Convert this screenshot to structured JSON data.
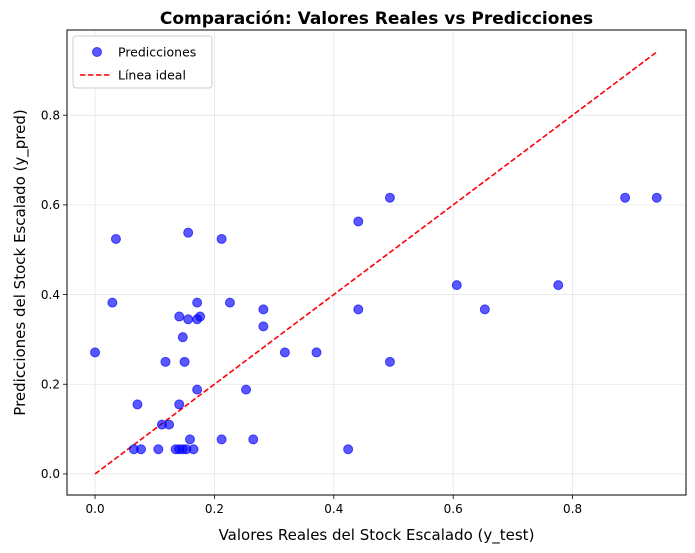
{
  "chart_data": {
    "type": "scatter",
    "title": "Comparación: Valores Reales vs Predicciones",
    "xlabel": "Valores Reales del Stock Escalado (y_test)",
    "ylabel": "Predicciones del Stock Escalado (y_pred)",
    "xlim": [
      -0.047,
      0.99
    ],
    "ylim": [
      -0.047,
      0.99
    ],
    "xticks": [
      0.0,
      0.2,
      0.4,
      0.6,
      0.8
    ],
    "yticks": [
      0.0,
      0.2,
      0.4,
      0.6,
      0.8
    ],
    "grid": true,
    "legend_position": "top-left",
    "series": [
      {
        "name": "Predicciones",
        "kind": "scatter",
        "color": "#0000ff",
        "x": [
          0.0,
          0.029,
          0.035,
          0.065,
          0.071,
          0.077,
          0.106,
          0.112,
          0.118,
          0.124,
          0.135,
          0.141,
          0.141,
          0.141,
          0.147,
          0.147,
          0.15,
          0.153,
          0.156,
          0.156,
          0.159,
          0.165,
          0.171,
          0.171,
          0.171,
          0.176,
          0.212,
          0.212,
          0.226,
          0.253,
          0.265,
          0.282,
          0.282,
          0.318,
          0.371,
          0.424,
          0.441,
          0.441,
          0.494,
          0.494,
          0.606,
          0.653,
          0.776,
          0.888,
          0.941
        ],
        "y": [
          0.271,
          0.382,
          0.524,
          0.055,
          0.155,
          0.055,
          0.055,
          0.11,
          0.25,
          0.11,
          0.055,
          0.155,
          0.055,
          0.351,
          0.305,
          0.055,
          0.25,
          0.055,
          0.345,
          0.538,
          0.077,
          0.055,
          0.188,
          0.345,
          0.382,
          0.351,
          0.524,
          0.077,
          0.382,
          0.188,
          0.077,
          0.329,
          0.367,
          0.271,
          0.271,
          0.055,
          0.367,
          0.563,
          0.616,
          0.25,
          0.421,
          0.367,
          0.421,
          0.616,
          0.616
        ]
      },
      {
        "name": "Línea ideal",
        "kind": "line",
        "style": "dashed",
        "color": "#ff0000",
        "x": [
          0.0,
          0.941
        ],
        "y": [
          0.0,
          0.941
        ]
      }
    ]
  }
}
